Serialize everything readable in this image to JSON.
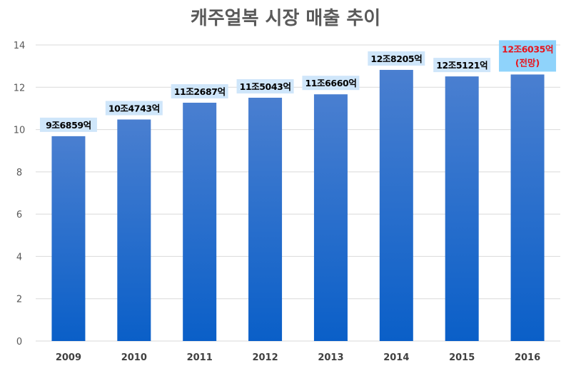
{
  "chart_data": {
    "type": "bar",
    "title": "캐주얼복 시장 매출 추이",
    "xlabel": "",
    "ylabel": "",
    "ylim": [
      0,
      14
    ],
    "y_ticks": [
      "0",
      "2",
      "4",
      "6",
      "8",
      "10",
      "12",
      "14"
    ],
    "grid": true,
    "categories": [
      "2009",
      "2010",
      "2011",
      "2012",
      "2013",
      "2014",
      "2015",
      "2016"
    ],
    "values": [
      9.6859,
      10.4743,
      11.2687,
      11.5043,
      11.666,
      12.8205,
      12.5121,
      12.6035
    ],
    "data_labels": [
      "9조6859억",
      "10조4743억",
      "11조2687억",
      "11조5043억",
      "11조6660억",
      "12조8205억",
      "12조5121억",
      "12조6035억"
    ],
    "forecast_note": "(전망)",
    "colors": {
      "bar_top": "#4a7fd0",
      "bar_bottom": "#0a5fc8",
      "label_bg": "#cfe6fa",
      "label_bg_forecast": "#8fd3fb",
      "forecast_text": "#e8141c",
      "grid": "#d9d9d9"
    }
  }
}
